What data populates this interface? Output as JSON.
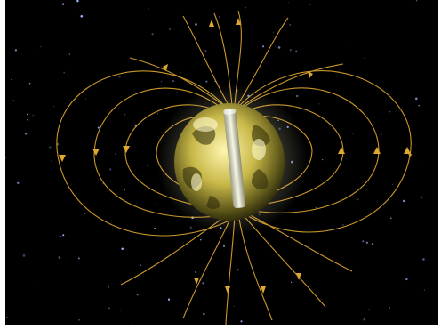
{
  "image": {
    "subject": "magnetic-field-illustration",
    "background_color": "#000000",
    "frame_color": "#ffffff",
    "field_line_color": "#e0a830",
    "globe_color": "#c8c060",
    "magnet_color": "#e8e8d0",
    "star_color": "#9fb0ff"
  }
}
